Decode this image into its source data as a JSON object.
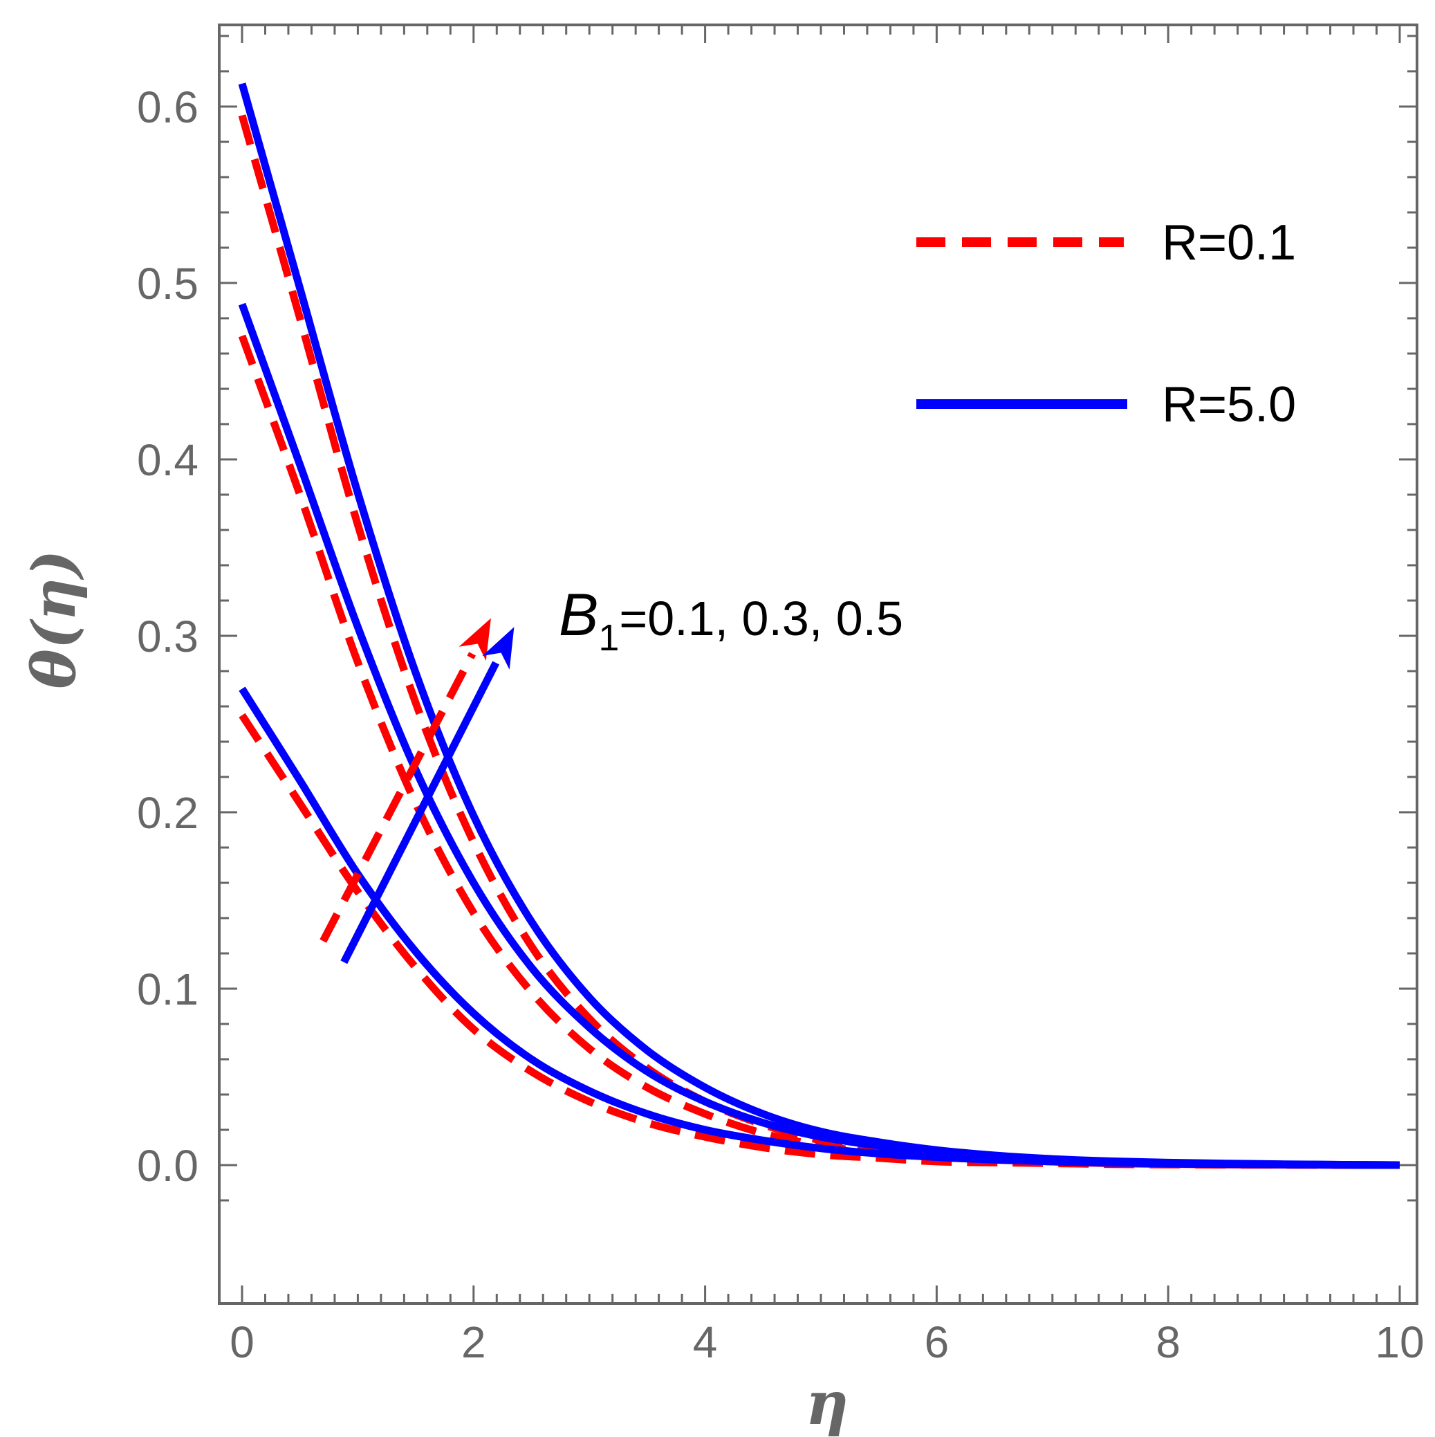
{
  "chart_data": {
    "type": "line",
    "xlabel": "η",
    "ylabel": "θ(η)",
    "xlim": [
      -0.2,
      10.2
    ],
    "ylim": [
      -0.035,
      0.645
    ],
    "x_ticks": [
      "0",
      "2",
      "4",
      "6",
      "8",
      "10"
    ],
    "y_ticks": [
      "0.0",
      "0.1",
      "0.2",
      "0.3",
      "0.4",
      "0.5",
      "0.6"
    ],
    "grid": false,
    "legend_position": "top-right",
    "legend": [
      {
        "label": "R=0.1",
        "color": "#ff0000",
        "style": "dashed"
      },
      {
        "label": "R=5.0",
        "color": "#0000ff",
        "style": "solid"
      }
    ],
    "annotation": {
      "symbol": "B",
      "subscript": "1",
      "text": "=0.1, 0.3, 0.5"
    },
    "x": [
      0,
      0.5,
      1,
      1.5,
      2,
      2.5,
      3,
      3.5,
      4,
      4.5,
      5,
      5.5,
      6,
      6.5,
      7,
      7.5,
      8,
      8.5,
      9,
      9.5,
      10
    ],
    "series": [
      {
        "legend": "R=0.1",
        "color": "#ff0000",
        "style": "dashed",
        "B1": "0.1",
        "values": [
          0.255,
          0.205,
          0.155,
          0.112,
          0.077,
          0.053,
          0.036,
          0.024,
          0.016,
          0.01,
          0.006,
          0.004,
          0.002,
          0.0015,
          0.001,
          0.0005,
          0.0003,
          0.0002,
          0.0001,
          0.0,
          0.0
        ]
      },
      {
        "legend": "R=0.1",
        "color": "#ff0000",
        "style": "dashed",
        "B1": "0.3",
        "values": [
          0.47,
          0.38,
          0.285,
          0.205,
          0.143,
          0.098,
          0.066,
          0.044,
          0.029,
          0.018,
          0.011,
          0.007,
          0.0045,
          0.003,
          0.002,
          0.001,
          0.0006,
          0.0003,
          0.0002,
          0.0001,
          0.0
        ]
      },
      {
        "legend": "R=0.1",
        "color": "#ff0000",
        "style": "dashed",
        "B1": "0.5",
        "values": [
          0.595,
          0.48,
          0.363,
          0.262,
          0.183,
          0.124,
          0.083,
          0.055,
          0.036,
          0.023,
          0.014,
          0.009,
          0.0055,
          0.0035,
          0.002,
          0.0013,
          0.0008,
          0.0005,
          0.0003,
          0.0001,
          0.0
        ]
      },
      {
        "legend": "R=5.0",
        "color": "#0000ff",
        "style": "solid",
        "B1": "0.1",
        "values": [
          0.27,
          0.218,
          0.165,
          0.121,
          0.086,
          0.06,
          0.042,
          0.029,
          0.02,
          0.014,
          0.0095,
          0.0065,
          0.0045,
          0.003,
          0.002,
          0.0013,
          0.0008,
          0.0005,
          0.0003,
          0.0001,
          0.0
        ]
      },
      {
        "legend": "R=5.0",
        "color": "#0000ff",
        "style": "solid",
        "B1": "0.3",
        "values": [
          0.488,
          0.397,
          0.305,
          0.224,
          0.16,
          0.112,
          0.078,
          0.053,
          0.036,
          0.024,
          0.016,
          0.011,
          0.007,
          0.0045,
          0.003,
          0.002,
          0.0013,
          0.0008,
          0.0004,
          0.0002,
          0.0
        ]
      },
      {
        "legend": "R=5.0",
        "color": "#0000ff",
        "style": "solid",
        "B1": "0.5",
        "values": [
          0.613,
          0.497,
          0.381,
          0.279,
          0.198,
          0.138,
          0.095,
          0.065,
          0.044,
          0.029,
          0.019,
          0.013,
          0.0085,
          0.0055,
          0.0035,
          0.0022,
          0.0014,
          0.0009,
          0.0005,
          0.0002,
          0.0
        ]
      }
    ],
    "arrows": [
      {
        "color": "#ff0000",
        "style": "dashed",
        "from": [
          0.7,
          0.127
        ],
        "to": [
          2.15,
          0.31
        ]
      },
      {
        "color": "#0000ff",
        "style": "solid",
        "from": [
          0.88,
          0.115
        ],
        "to": [
          2.35,
          0.305
        ]
      }
    ]
  }
}
